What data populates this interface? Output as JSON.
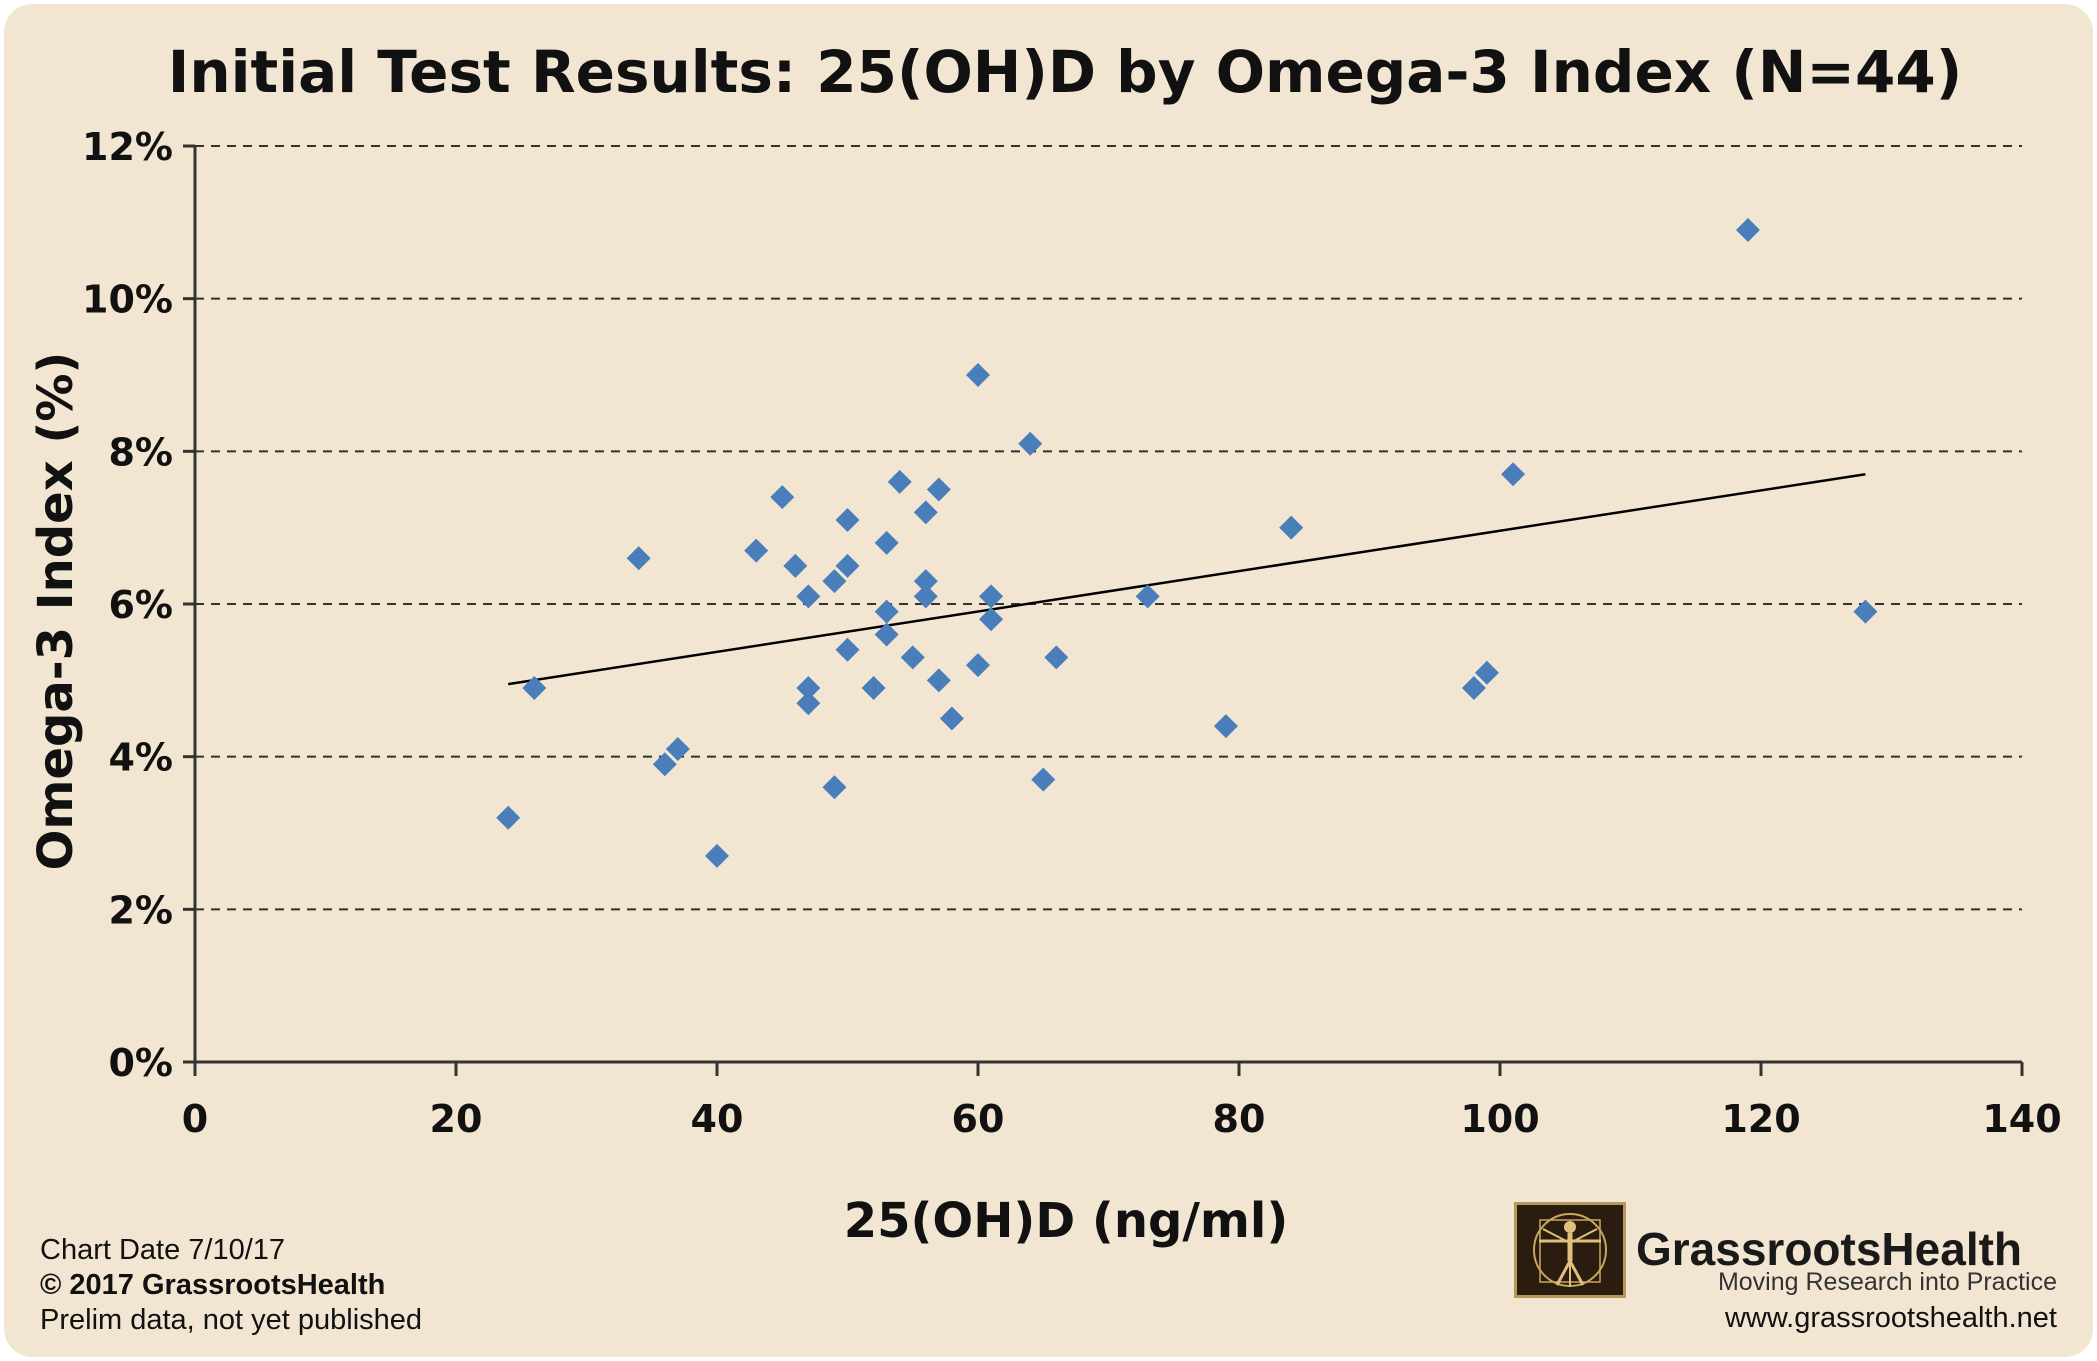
{
  "colors": {
    "background": "#f2e6d2",
    "marker": "#4a7ebb",
    "trendline": "#000000",
    "grid": "#333333",
    "logo_border": "#b8985a"
  },
  "chart_data": {
    "type": "scatter",
    "title": "Initial Test Results: 25(OH)D by Omega-3 Index (N=44)",
    "xlabel": "25(OH)D (ng/ml)",
    "ylabel": "Omega-3 Index (%)",
    "xlim": [
      0,
      140
    ],
    "ylim": [
      0,
      12
    ],
    "x_ticks": [
      0,
      20,
      40,
      60,
      80,
      100,
      120,
      140
    ],
    "x_tick_labels": [
      "0",
      "20",
      "40",
      "60",
      "80",
      "100",
      "120",
      "140"
    ],
    "y_ticks": [
      0,
      2,
      4,
      6,
      8,
      10,
      12
    ],
    "y_tick_labels": [
      "0%",
      "2%",
      "4%",
      "6%",
      "8%",
      "10%",
      "12%"
    ],
    "grid": "horizontal dashed",
    "marker": "diamond",
    "points": [
      {
        "x": 24,
        "y": 3.2
      },
      {
        "x": 26,
        "y": 4.9
      },
      {
        "x": 34,
        "y": 6.6
      },
      {
        "x": 36,
        "y": 3.9
      },
      {
        "x": 37,
        "y": 4.1
      },
      {
        "x": 40,
        "y": 2.7
      },
      {
        "x": 43,
        "y": 6.7
      },
      {
        "x": 45,
        "y": 7.4
      },
      {
        "x": 46,
        "y": 6.5
      },
      {
        "x": 47,
        "y": 6.1
      },
      {
        "x": 47,
        "y": 4.9
      },
      {
        "x": 47,
        "y": 4.7
      },
      {
        "x": 49,
        "y": 6.3
      },
      {
        "x": 49,
        "y": 3.6
      },
      {
        "x": 50,
        "y": 7.1
      },
      {
        "x": 50,
        "y": 6.5
      },
      {
        "x": 50,
        "y": 5.4
      },
      {
        "x": 52,
        "y": 4.9
      },
      {
        "x": 53,
        "y": 6.8
      },
      {
        "x": 53,
        "y": 5.9
      },
      {
        "x": 53,
        "y": 5.6
      },
      {
        "x": 54,
        "y": 7.6
      },
      {
        "x": 55,
        "y": 5.3
      },
      {
        "x": 56,
        "y": 7.2
      },
      {
        "x": 56,
        "y": 6.3
      },
      {
        "x": 56,
        "y": 6.1
      },
      {
        "x": 57,
        "y": 7.5
      },
      {
        "x": 57,
        "y": 5.0
      },
      {
        "x": 58,
        "y": 4.5
      },
      {
        "x": 60,
        "y": 9.0
      },
      {
        "x": 60,
        "y": 5.2
      },
      {
        "x": 61,
        "y": 6.1
      },
      {
        "x": 61,
        "y": 5.8
      },
      {
        "x": 64,
        "y": 8.1
      },
      {
        "x": 65,
        "y": 3.7
      },
      {
        "x": 66,
        "y": 5.3
      },
      {
        "x": 73,
        "y": 6.1
      },
      {
        "x": 79,
        "y": 4.4
      },
      {
        "x": 84,
        "y": 7.0
      },
      {
        "x": 98,
        "y": 4.9
      },
      {
        "x": 99,
        "y": 5.1
      },
      {
        "x": 101,
        "y": 7.7
      },
      {
        "x": 119,
        "y": 10.9
      },
      {
        "x": 128,
        "y": 5.9
      }
    ],
    "trendline": {
      "x": [
        24,
        128
      ],
      "y": [
        4.95,
        7.7
      ]
    }
  },
  "footer": {
    "chart_date": "Chart Date 7/10/17",
    "copyright": "© 2017 GrassrootsHealth",
    "note": "Prelim data, not yet published"
  },
  "brand": {
    "name": "GrassrootsHealth",
    "tagline": "Moving Research into Practice",
    "url": "www.grassrootshealth.net"
  }
}
